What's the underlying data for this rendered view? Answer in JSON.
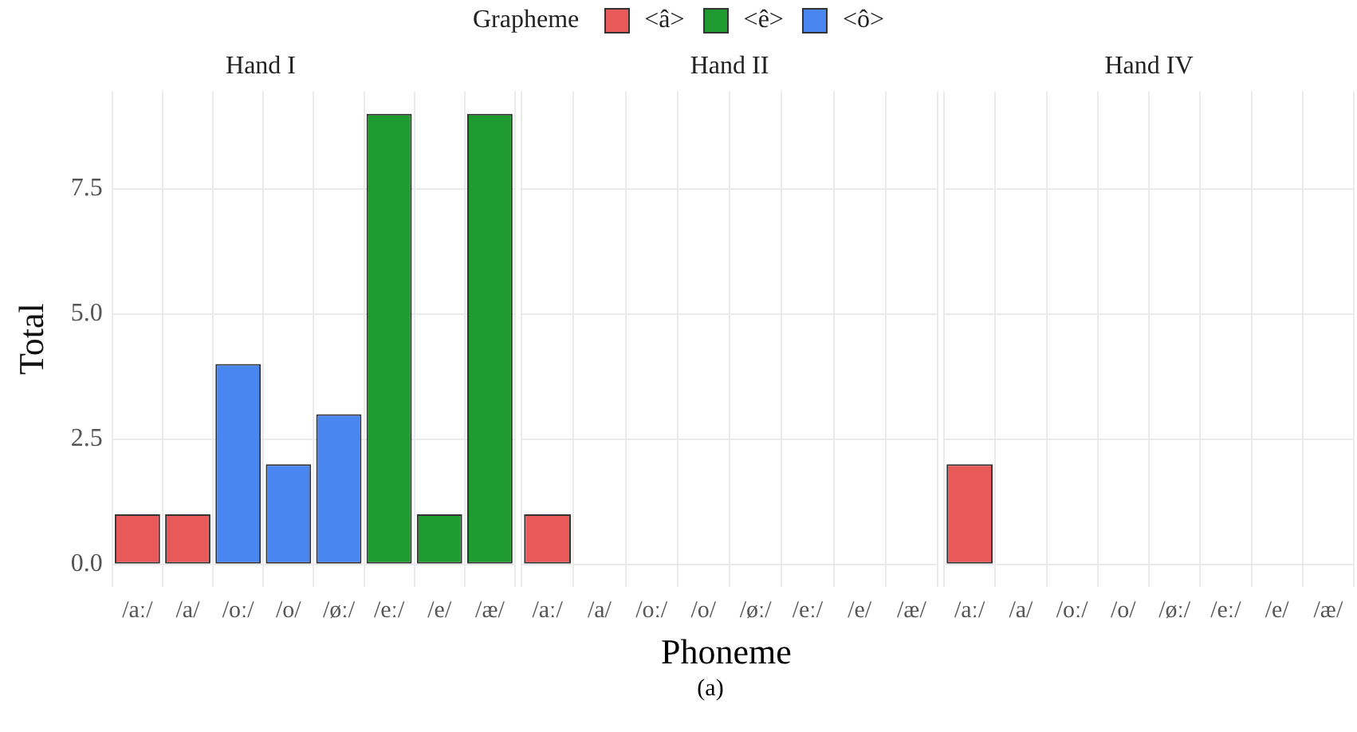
{
  "chart_data": [
    {
      "type": "bar",
      "title": "Hand I",
      "ylabel": "Total",
      "legend_title": "Grapheme",
      "legend": "top",
      "grid": true,
      "categories": [
        "/aː/",
        "/a/",
        "/oː/",
        "/o/",
        "/øː/",
        "/eː/",
        "/e/",
        "/æ/"
      ],
      "ylim": [
        -0.45,
        9.45
      ],
      "yticks": [
        {
          "value": 0,
          "label": "0.0"
        },
        {
          "value": 2.5,
          "label": "2.5"
        },
        {
          "value": 5,
          "label": "5.0"
        },
        {
          "value": 7.5,
          "label": "7.5"
        }
      ],
      "series": [
        {
          "name": "<â>",
          "color": "#e8595a",
          "values": [
            1,
            1,
            null,
            null,
            null,
            null,
            null,
            null
          ]
        },
        {
          "name": "<ê>",
          "color": "#1f9a2e",
          "values": [
            null,
            null,
            null,
            null,
            null,
            9,
            1,
            9
          ]
        },
        {
          "name": "<ô>",
          "color": "#4a86f0",
          "values": [
            null,
            null,
            4,
            2,
            3,
            null,
            null,
            null
          ]
        }
      ]
    },
    {
      "type": "bar",
      "title": "Hand II",
      "xlabel": "Phoneme",
      "annotations": [
        "(a)"
      ],
      "tick_labels": "x",
      "grid": true,
      "categories": [
        "/aː/",
        "/a/",
        "/oː/",
        "/o/",
        "/øː/",
        "/eː/",
        "/e/",
        "/æ/"
      ],
      "ylim": [
        -0.45,
        9.45
      ],
      "yticks": [
        0,
        2.5,
        5,
        7.5
      ],
      "series": [
        {
          "color": "#e8595a",
          "values": [
            1,
            0,
            null,
            null,
            null,
            null,
            null,
            null
          ]
        },
        {
          "color": "#1f9a2e",
          "values": [
            null,
            null,
            null,
            null,
            null,
            0,
            0,
            0
          ]
        },
        {
          "color": "#4a86f0",
          "values": [
            null,
            null,
            0,
            0,
            0,
            null,
            null,
            null
          ]
        }
      ]
    },
    {
      "type": "bar",
      "title": "Hand IV",
      "tick_labels": "x",
      "grid": true,
      "categories": [
        "/aː/",
        "/a/",
        "/oː/",
        "/o/",
        "/øː/",
        "/eː/",
        "/e/",
        "/æ/"
      ],
      "ylim": [
        -0.45,
        9.45
      ],
      "yticks": [
        0,
        2.5,
        5,
        7.5
      ],
      "series": [
        {
          "color": "#e8595a",
          "values": [
            2,
            0,
            null,
            null,
            null,
            null,
            null,
            null
          ]
        },
        {
          "color": "#1f9a2e",
          "values": [
            null,
            null,
            null,
            null,
            null,
            0,
            0,
            0
          ]
        },
        {
          "color": "#4a86f0",
          "values": [
            null,
            null,
            0,
            0,
            0,
            null,
            null,
            null
          ]
        }
      ]
    }
  ]
}
